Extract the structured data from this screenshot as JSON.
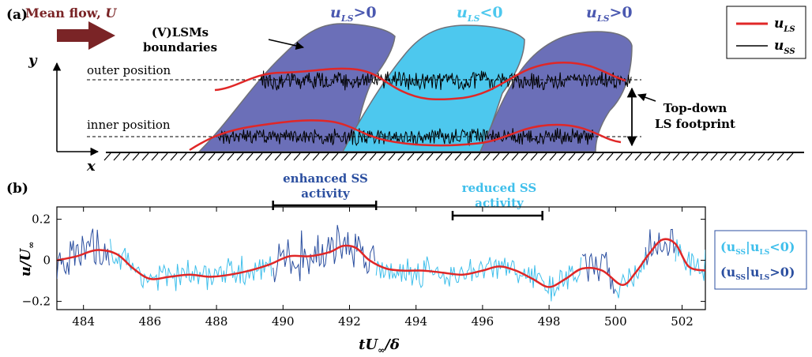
{
  "panel_a": {
    "label": "(a)",
    "mean_flow": {
      "prefix": "Mean flow, ",
      "symbol": "U"
    },
    "axis_y": "y",
    "axis_x": "x",
    "region_labels": [
      {
        "u": "u",
        "sub": "LS",
        "rel": ">0"
      },
      {
        "u": "u",
        "sub": "LS",
        "rel": "<0"
      },
      {
        "u": "u",
        "sub": "LS",
        "rel": ">0"
      }
    ],
    "boundaries_label": [
      "(V)LSMs",
      "boundaries"
    ],
    "outer_position": "outer position",
    "inner_position": "inner position",
    "footprint_label": [
      "Top-down",
      "LS footprint"
    ],
    "legend": [
      {
        "u": "u",
        "sub": "LS",
        "color": "#e02727"
      },
      {
        "u": "u",
        "sub": "SS",
        "color": "#000000"
      }
    ],
    "colors": {
      "positive_region": "#6b6fb8",
      "negative_region": "#4dc8ee",
      "red": "#e02727"
    }
  },
  "panel_b": {
    "label": "(b)",
    "annotations": [
      {
        "lines": [
          "enhanced SS",
          "activity"
        ],
        "color": "#2b4fa0"
      },
      {
        "lines": [
          "reduced SS",
          "activity"
        ],
        "color": "#3fbfeb"
      }
    ],
    "legend": [
      {
        "text": "(u",
        "sub1": "SS",
        "mid": "|u",
        "sub2": "LS",
        "rel": "<0)",
        "color": "#3fbfeb"
      },
      {
        "text": "(u",
        "sub1": "SS",
        "mid": "|u",
        "sub2": "LS",
        "rel": ">0)",
        "color": "#2b4fa0"
      }
    ]
  },
  "chart_data": {
    "type": "line",
    "xlabel": "tU∞/δ",
    "ylabel": "u/U∞",
    "xlim": [
      483.2,
      502.7
    ],
    "ylim": [
      -0.24,
      0.26
    ],
    "xticks": [
      484,
      486,
      488,
      490,
      492,
      494,
      496,
      498,
      500,
      502
    ],
    "yticks": [
      0.2,
      0,
      -0.2
    ],
    "ytick_labels": [
      "0.2",
      "0",
      "−0.2"
    ],
    "series": [
      {
        "color": "#e02727",
        "x": [
          483.2,
          483.8,
          484.4,
          485.0,
          485.5,
          486.0,
          486.6,
          487.2,
          487.8,
          488.4,
          489.0,
          489.6,
          490.2,
          490.8,
          491.4,
          491.8,
          492.2,
          492.6,
          493.1,
          493.6,
          494.2,
          494.8,
          495.4,
          496.0,
          496.5,
          497.0,
          497.5,
          498.0,
          498.5,
          499.0,
          499.6,
          500.2,
          500.6,
          501.0,
          501.4,
          501.8,
          502.2,
          502.7
        ],
        "y": [
          0.0,
          0.02,
          0.05,
          0.03,
          -0.04,
          -0.09,
          -0.08,
          -0.07,
          -0.08,
          -0.07,
          -0.05,
          -0.02,
          0.02,
          0.02,
          0.04,
          0.07,
          0.06,
          0.0,
          -0.04,
          -0.05,
          -0.05,
          -0.06,
          -0.07,
          -0.05,
          -0.03,
          -0.05,
          -0.09,
          -0.13,
          -0.09,
          -0.04,
          -0.05,
          -0.12,
          -0.06,
          0.03,
          0.1,
          0.08,
          -0.03,
          -0.05
        ]
      }
    ],
    "ss_regions": [
      {
        "range": [
          483.2,
          484.8
        ],
        "class": "positive"
      },
      {
        "range": [
          484.8,
          489.7
        ],
        "class": "negative"
      },
      {
        "range": [
          489.7,
          492.8
        ],
        "class": "positive"
      },
      {
        "range": [
          492.8,
          499.0
        ],
        "class": "negative"
      },
      {
        "range": [
          499.0,
          500.0
        ],
        "class": "positive"
      },
      {
        "range": [
          500.0,
          500.9
        ],
        "class": "negative"
      },
      {
        "range": [
          500.9,
          501.8
        ],
        "class": "positive"
      },
      {
        "range": [
          501.8,
          502.7
        ],
        "class": "negative"
      }
    ]
  }
}
